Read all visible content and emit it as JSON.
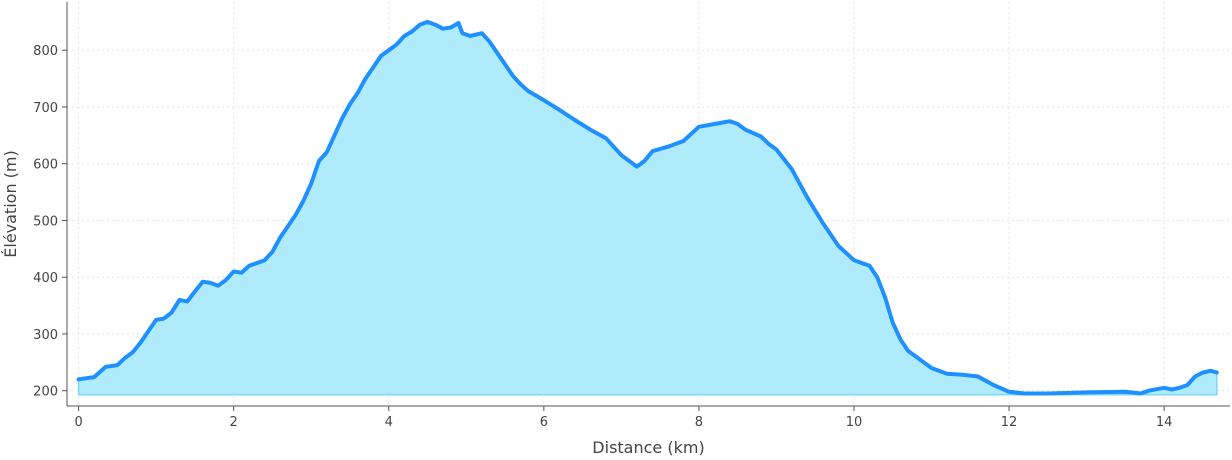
{
  "chart_data": {
    "type": "area",
    "title": "",
    "xlabel": "Distance (km)",
    "ylabel": "Élévation (m)",
    "xlim": [
      -0.15,
      14.85
    ],
    "ylim": [
      173,
      885
    ],
    "xticks": [
      0,
      2,
      4,
      6,
      8,
      10,
      12,
      14
    ],
    "yticks": [
      200,
      300,
      400,
      500,
      600,
      700,
      800
    ],
    "grid": true,
    "baseline": 193,
    "colors": {
      "line": "#1e90ff",
      "fill": "#b0ebfb",
      "fill_edge": "#7fd8f2"
    },
    "series": [
      {
        "x": [
          0,
          0.2,
          0.35,
          0.5,
          0.6,
          0.7,
          0.8,
          0.9,
          1.0,
          1.1,
          1.2,
          1.3,
          1.4,
          1.5,
          1.6,
          1.7,
          1.8,
          1.9,
          2.0,
          2.1,
          2.2,
          2.3,
          2.4,
          2.5,
          2.6,
          2.7,
          2.8,
          2.9,
          3.0,
          3.1,
          3.2,
          3.3,
          3.4,
          3.5,
          3.6,
          3.7,
          3.8,
          3.9,
          4.0,
          4.1,
          4.2,
          4.3,
          4.4,
          4.5,
          4.6,
          4.7,
          4.8,
          4.9,
          4.95,
          5.05,
          5.2,
          5.3,
          5.4,
          5.5,
          5.6,
          5.7,
          5.8,
          5.9,
          6.0,
          6.2,
          6.4,
          6.6,
          6.8,
          7.0,
          7.1,
          7.2,
          7.3,
          7.4,
          7.6,
          7.8,
          8.0,
          8.2,
          8.4,
          8.5,
          8.6,
          8.8,
          8.9,
          9.0,
          9.2,
          9.4,
          9.6,
          9.8,
          10.0,
          10.2,
          10.3,
          10.4,
          10.5,
          10.6,
          10.7,
          10.8,
          10.9,
          11.0,
          11.2,
          11.4,
          11.6,
          11.8,
          12.0,
          12.2,
          12.5,
          13.0,
          13.5,
          13.7,
          13.8,
          14.0,
          14.1,
          14.2,
          14.3,
          14.4,
          14.5,
          14.6,
          14.68
        ],
        "y": [
          220,
          224,
          242,
          245,
          258,
          268,
          285,
          305,
          325,
          327,
          338,
          360,
          357,
          375,
          392,
          390,
          385,
          395,
          410,
          408,
          420,
          425,
          430,
          445,
          470,
          490,
          510,
          535,
          565,
          605,
          620,
          650,
          680,
          705,
          725,
          750,
          770,
          790,
          800,
          810,
          825,
          833,
          845,
          850,
          845,
          838,
          840,
          848,
          830,
          825,
          830,
          815,
          795,
          775,
          755,
          740,
          728,
          720,
          712,
          695,
          677,
          660,
          645,
          615,
          605,
          595,
          605,
          622,
          630,
          640,
          665,
          670,
          675,
          670,
          660,
          648,
          635,
          625,
          590,
          540,
          495,
          455,
          430,
          420,
          400,
          365,
          320,
          290,
          270,
          260,
          250,
          240,
          230,
          228,
          225,
          210,
          198,
          195,
          195,
          197,
          198,
          195,
          200,
          205,
          202,
          205,
          210,
          225,
          232,
          235,
          232
        ]
      }
    ]
  }
}
